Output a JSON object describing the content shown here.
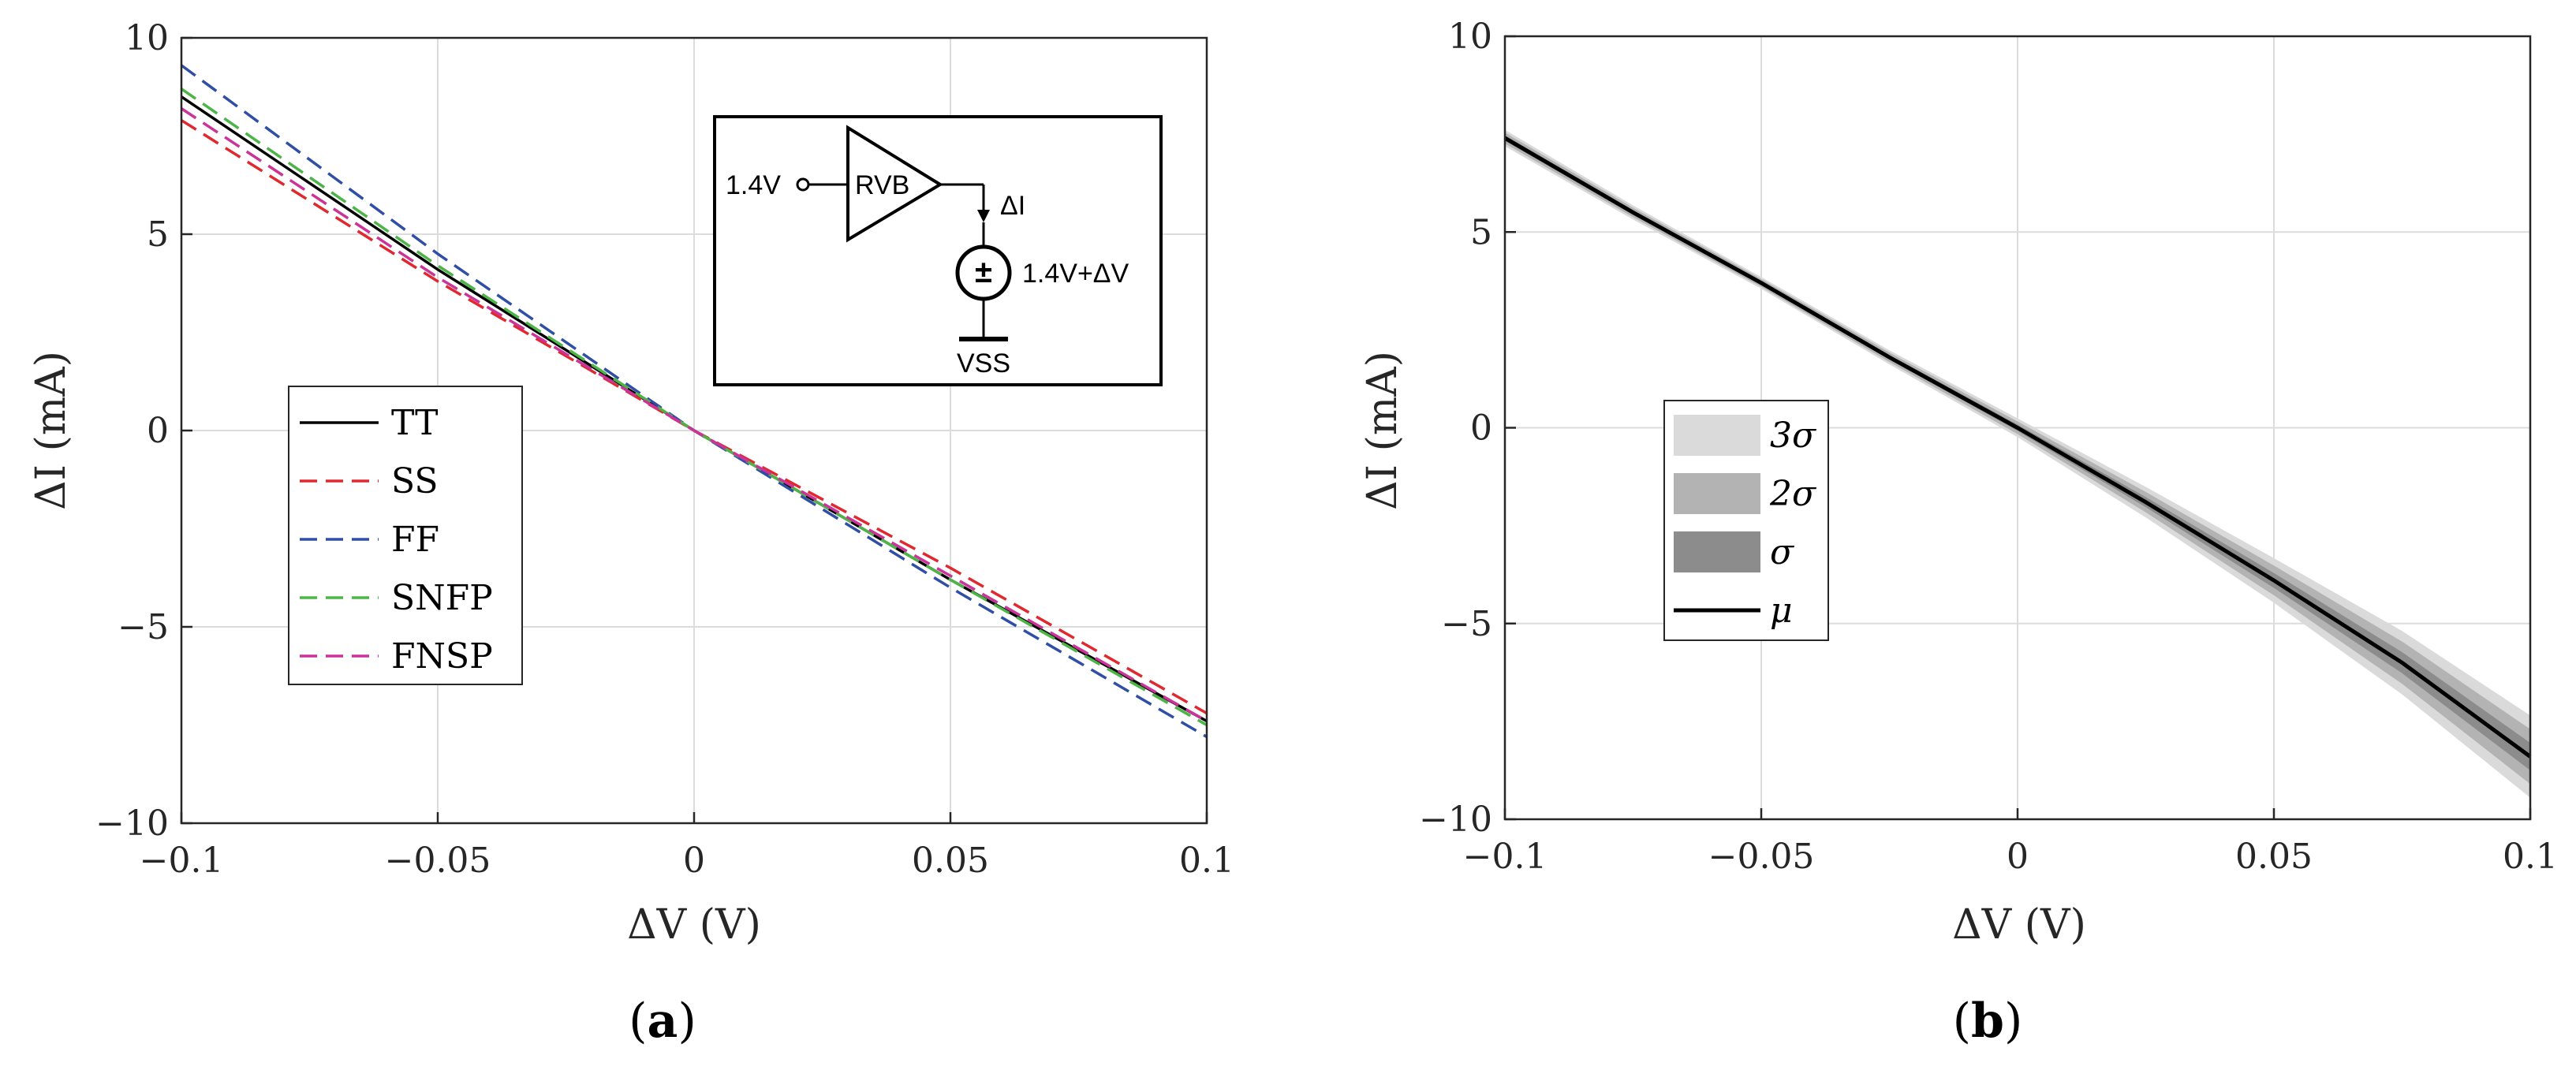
{
  "panels": {
    "a": {
      "label_open": "(",
      "label_letter": "a",
      "label_close": ")"
    },
    "b": {
      "label_open": "(",
      "label_letter": "b",
      "label_close": ")"
    }
  },
  "inset": {
    "input_label": "1.4V",
    "block_label": "RVB",
    "current_label": "ΔI",
    "source_symbol": "±",
    "source_label": "1.4V+ΔV",
    "ground_label": "VSS"
  },
  "chart_data": [
    {
      "id": "a",
      "type": "line",
      "xlabel": "ΔV (V)",
      "ylabel": "ΔI (mA)",
      "xlim": [
        -0.1,
        0.1
      ],
      "ylim": [
        -10,
        10
      ],
      "xticks": [
        -0.1,
        -0.05,
        0,
        0.05,
        0.1
      ],
      "xtick_labels": [
        "−0.1",
        "−0.05",
        "0",
        "0.05",
        "0.1"
      ],
      "yticks": [
        -10,
        -5,
        0,
        5,
        10
      ],
      "ytick_labels": [
        "−10",
        "−5",
        "0",
        "5",
        "10"
      ],
      "grid": true,
      "legend_position": "left-middle",
      "series": [
        {
          "name": "TT",
          "color": "#000000",
          "dash": "solid",
          "x": [
            -0.1,
            -0.05,
            0,
            0.05,
            0.1
          ],
          "y": [
            8.5,
            4.1,
            0,
            -3.8,
            -7.4
          ]
        },
        {
          "name": "SS",
          "color": "#e0282e",
          "dash": "dashed",
          "x": [
            -0.1,
            -0.05,
            0,
            0.05,
            0.1
          ],
          "y": [
            7.9,
            3.8,
            0,
            -3.5,
            -7.2
          ]
        },
        {
          "name": "FF",
          "color": "#2f4ea5",
          "dash": "dashed",
          "x": [
            -0.1,
            -0.05,
            0,
            0.05,
            0.1
          ],
          "y": [
            9.3,
            4.5,
            0,
            -4.0,
            -7.8
          ]
        },
        {
          "name": "SNFP",
          "color": "#4db547",
          "dash": "dashed",
          "x": [
            -0.1,
            -0.05,
            0,
            0.05,
            0.1
          ],
          "y": [
            8.7,
            4.2,
            0,
            -3.8,
            -7.5
          ]
        },
        {
          "name": "FNSP",
          "color": "#cc3399",
          "dash": "dashed",
          "x": [
            -0.1,
            -0.05,
            0,
            0.05,
            0.1
          ],
          "y": [
            8.2,
            3.9,
            0,
            -3.7,
            -7.4
          ]
        }
      ]
    },
    {
      "id": "b",
      "type": "area",
      "xlabel": "ΔV (V)",
      "ylabel": "ΔI (mA)",
      "xlim": [
        -0.1,
        0.1
      ],
      "ylim": [
        -10,
        10
      ],
      "xticks": [
        -0.1,
        -0.05,
        0,
        0.05,
        0.1
      ],
      "xtick_labels": [
        "−0.1",
        "−0.05",
        "0",
        "0.05",
        "0.1"
      ],
      "yticks": [
        -10,
        -5,
        0,
        5,
        10
      ],
      "ytick_labels": [
        "−10",
        "−5",
        "0",
        "5",
        "10"
      ],
      "grid": true,
      "legend_position": "left-middle",
      "x": [
        -0.1,
        -0.075,
        -0.05,
        -0.025,
        0,
        0.025,
        0.05,
        0.075,
        0.1
      ],
      "mean": [
        7.4,
        5.5,
        3.7,
        1.8,
        0,
        -1.9,
        -3.9,
        -6.0,
        -8.4
      ],
      "sigma": [
        0.07,
        0.06,
        0.05,
        0.06,
        0.08,
        0.13,
        0.19,
        0.27,
        0.35
      ],
      "band_colors": {
        "3σ": "#dadada",
        "2σ": "#b3b3b3",
        "σ": "#8c8c8c"
      },
      "mean_color": "#000000",
      "legend": [
        "3σ",
        "2σ",
        "σ",
        "μ"
      ]
    }
  ]
}
